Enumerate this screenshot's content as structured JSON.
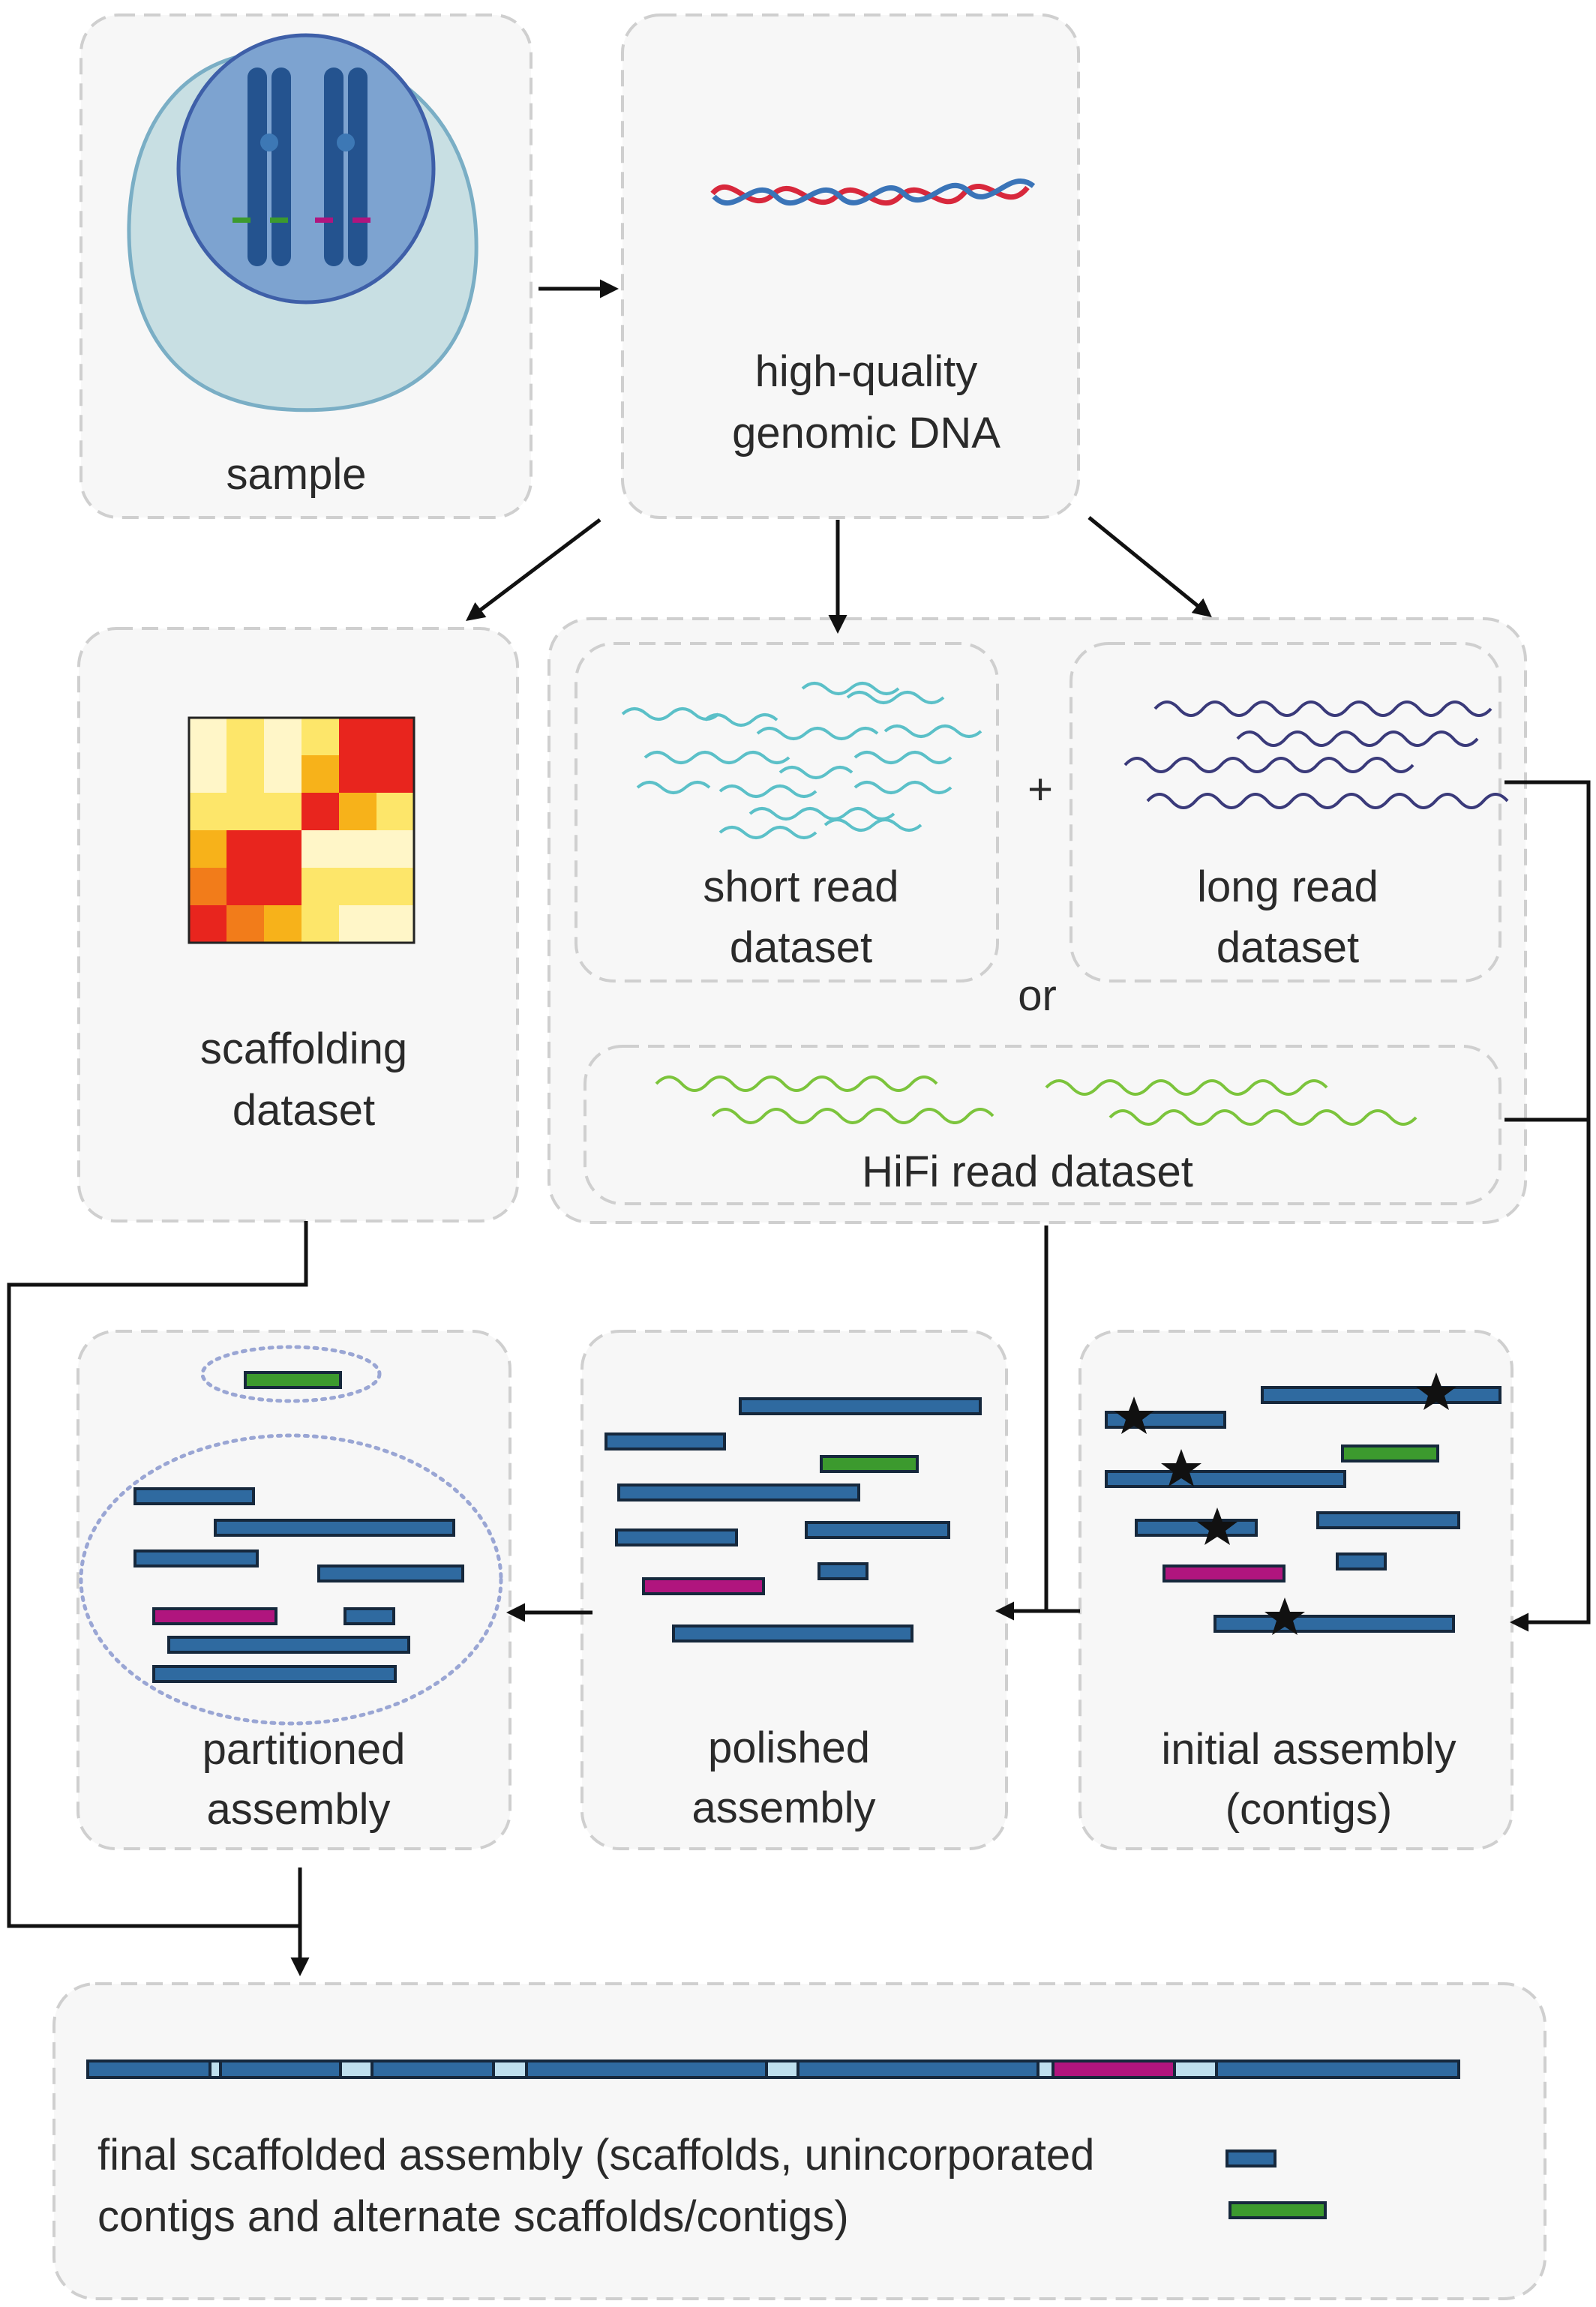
{
  "labels": {
    "sample": "sample",
    "hq_dna_1": "high-quality",
    "hq_dna_2": "genomic DNA",
    "scaffolding_1": "scaffolding",
    "scaffolding_2": "dataset",
    "short_read_1": "short read",
    "short_read_2": "dataset",
    "plus": "+",
    "long_read_1": "long read",
    "long_read_2": "dataset",
    "or": "or",
    "hifi": "HiFi read dataset",
    "partitioned_1": "partitioned",
    "partitioned_2": "assembly",
    "polished_1": "polished",
    "polished_2": "assembly",
    "initial_1": "initial assembly",
    "initial_2": "(contigs)",
    "final_1": "final scaffolded assembly (scaffolds, unincorporated",
    "final_2": "contigs and alternate scaffolds/contigs)"
  },
  "colors": {
    "contig_blue": "#2f6aa0",
    "contig_green": "#3c9a2e",
    "contig_magenta": "#b0157e",
    "short_read": "#5bc0c8",
    "long_read": "#3a3a7a",
    "hifi_read": "#7cc43c",
    "dna_red": "#d8283c",
    "dna_blue": "#3a74b8",
    "heatmap_palette": [
      "#fff6c8",
      "#fde66a",
      "#f7b21a",
      "#f27c1a",
      "#e8251e"
    ]
  },
  "heatmap": [
    [
      0,
      1,
      0,
      1,
      4,
      4
    ],
    [
      0,
      1,
      0,
      2,
      4,
      4
    ],
    [
      1,
      1,
      1,
      4,
      2,
      1
    ],
    [
      2,
      4,
      4,
      0,
      0,
      0
    ],
    [
      3,
      4,
      4,
      1,
      1,
      1
    ],
    [
      4,
      3,
      2,
      1,
      0,
      0
    ]
  ]
}
